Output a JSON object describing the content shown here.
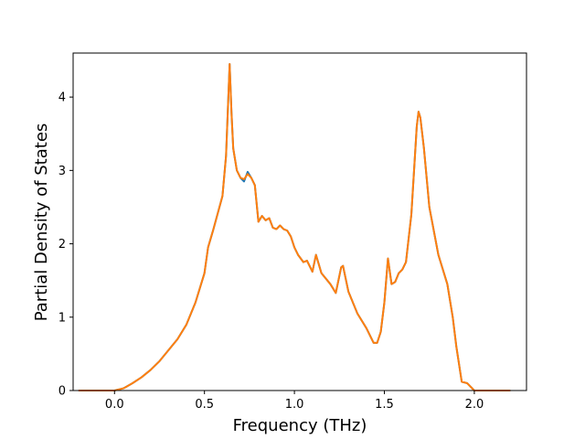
{
  "chart_data": {
    "type": "line",
    "xlabel": "Frequency (THz)",
    "ylabel": "Partial Density of States",
    "xlim": [
      -0.23,
      2.29
    ],
    "ylim": [
      0,
      4.6
    ],
    "x_ticks": [
      0.0,
      0.5,
      1.0,
      1.5,
      2.0
    ],
    "x_tick_labels": [
      "0.0",
      "0.5",
      "1.0",
      "1.5",
      "2.0"
    ],
    "y_ticks": [
      0,
      1,
      2,
      3,
      4
    ],
    "y_tick_labels": [
      "0",
      "1",
      "2",
      "3",
      "4"
    ],
    "grid": false,
    "legend": "none",
    "colors": {
      "series_1": "#1f77b4",
      "series_2": "#ff7f0e"
    },
    "series": [
      {
        "color": "#1f77b4",
        "x": [
          -0.2,
          -0.1,
          0.0,
          0.05,
          0.1,
          0.15,
          0.2,
          0.25,
          0.3,
          0.35,
          0.4,
          0.45,
          0.5,
          0.52,
          0.55,
          0.6,
          0.62,
          0.64,
          0.65,
          0.66,
          0.68,
          0.7,
          0.72,
          0.74,
          0.76,
          0.78,
          0.8,
          0.82,
          0.84,
          0.86,
          0.88,
          0.9,
          0.92,
          0.94,
          0.96,
          0.98,
          1.0,
          1.02,
          1.05,
          1.07,
          1.1,
          1.12,
          1.15,
          1.2,
          1.23,
          1.26,
          1.27,
          1.3,
          1.35,
          1.4,
          1.44,
          1.46,
          1.48,
          1.5,
          1.52,
          1.54,
          1.56,
          1.58,
          1.6,
          1.62,
          1.65,
          1.68,
          1.69,
          1.7,
          1.72,
          1.75,
          1.8,
          1.85,
          1.88,
          1.9,
          1.93,
          1.96,
          2.0,
          2.1,
          2.2
        ],
        "values": [
          0.0,
          0.0,
          0.0,
          0.03,
          0.1,
          0.18,
          0.28,
          0.4,
          0.55,
          0.7,
          0.9,
          1.2,
          1.6,
          1.95,
          2.2,
          2.65,
          3.2,
          4.45,
          3.8,
          3.3,
          3.0,
          2.9,
          2.85,
          2.98,
          2.9,
          2.8,
          2.3,
          2.38,
          2.32,
          2.35,
          2.22,
          2.2,
          2.25,
          2.2,
          2.18,
          2.1,
          1.95,
          1.85,
          1.75,
          1.77,
          1.62,
          1.85,
          1.6,
          1.45,
          1.33,
          1.68,
          1.7,
          1.35,
          1.05,
          0.85,
          0.65,
          0.65,
          0.8,
          1.2,
          1.8,
          1.45,
          1.48,
          1.6,
          1.65,
          1.75,
          2.4,
          3.6,
          3.8,
          3.72,
          3.3,
          2.5,
          1.85,
          1.45,
          1.0,
          0.6,
          0.12,
          0.1,
          0.0,
          0.0,
          0.0
        ]
      },
      {
        "color": "#ff7f0e",
        "x": [
          -0.2,
          -0.1,
          0.0,
          0.05,
          0.1,
          0.15,
          0.2,
          0.25,
          0.3,
          0.35,
          0.4,
          0.45,
          0.5,
          0.52,
          0.55,
          0.6,
          0.62,
          0.64,
          0.65,
          0.66,
          0.68,
          0.7,
          0.72,
          0.74,
          0.76,
          0.78,
          0.8,
          0.82,
          0.84,
          0.86,
          0.88,
          0.9,
          0.92,
          0.94,
          0.96,
          0.98,
          1.0,
          1.02,
          1.05,
          1.07,
          1.1,
          1.12,
          1.15,
          1.2,
          1.23,
          1.26,
          1.27,
          1.3,
          1.35,
          1.4,
          1.44,
          1.46,
          1.48,
          1.5,
          1.52,
          1.54,
          1.56,
          1.58,
          1.6,
          1.62,
          1.65,
          1.68,
          1.69,
          1.7,
          1.72,
          1.75,
          1.8,
          1.85,
          1.88,
          1.9,
          1.93,
          1.96,
          2.0,
          2.1,
          2.2
        ],
        "values": [
          0.0,
          0.0,
          0.0,
          0.03,
          0.1,
          0.18,
          0.28,
          0.4,
          0.55,
          0.7,
          0.9,
          1.2,
          1.6,
          1.95,
          2.2,
          2.65,
          3.2,
          4.45,
          3.8,
          3.3,
          3.0,
          2.9,
          2.88,
          2.95,
          2.9,
          2.8,
          2.3,
          2.38,
          2.32,
          2.35,
          2.22,
          2.2,
          2.25,
          2.2,
          2.18,
          2.1,
          1.95,
          1.85,
          1.75,
          1.77,
          1.62,
          1.85,
          1.6,
          1.45,
          1.33,
          1.68,
          1.7,
          1.35,
          1.05,
          0.85,
          0.65,
          0.65,
          0.8,
          1.2,
          1.8,
          1.45,
          1.48,
          1.6,
          1.65,
          1.75,
          2.4,
          3.6,
          3.8,
          3.72,
          3.3,
          2.5,
          1.85,
          1.45,
          1.0,
          0.6,
          0.12,
          0.1,
          0.0,
          0.0,
          0.0
        ]
      }
    ]
  }
}
